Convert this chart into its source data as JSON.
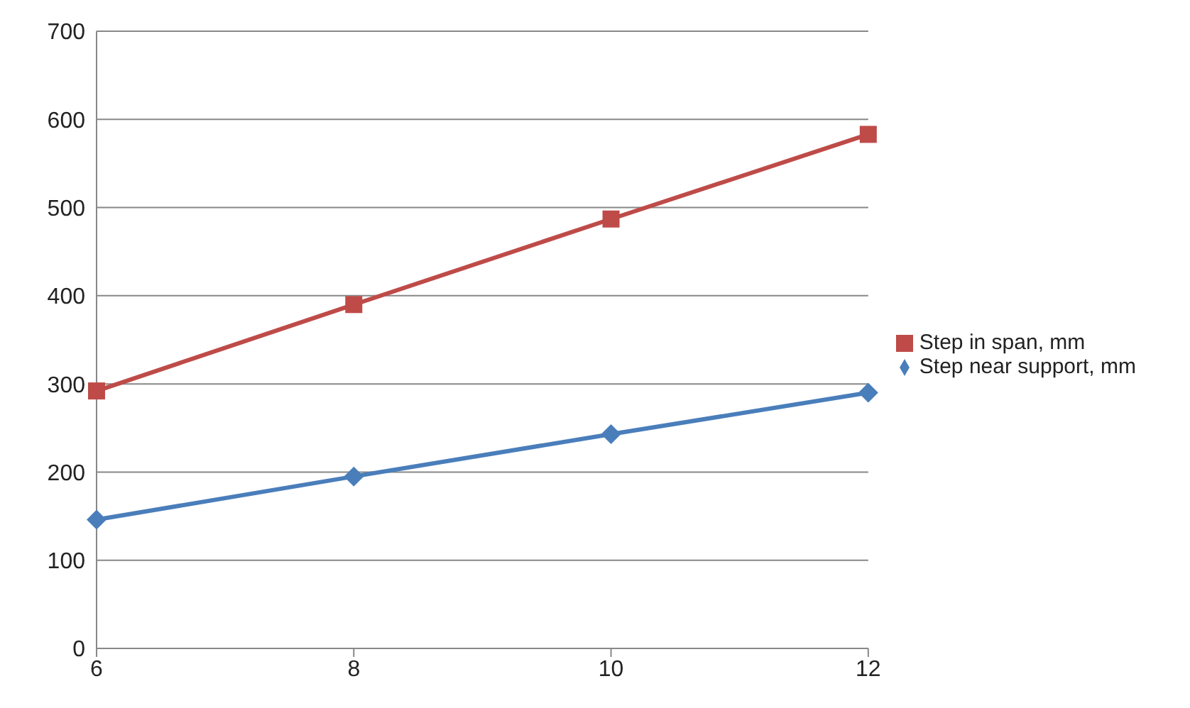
{
  "chart_data": {
    "type": "line",
    "categories": [
      "6",
      "8",
      "10",
      "12"
    ],
    "series": [
      {
        "name": "Step near support, mm",
        "color": "#4a7ebb",
        "marker": "diamond",
        "values": [
          146,
          195,
          243,
          290
        ]
      },
      {
        "name": "Step in span, mm",
        "color": "#be4b48",
        "marker": "square",
        "values": [
          292,
          390,
          487,
          583
        ]
      }
    ],
    "ylim": [
      0,
      700
    ],
    "yticks": [
      0,
      100,
      200,
      300,
      400,
      500,
      600,
      700
    ],
    "grid": "y",
    "legend": "right"
  }
}
